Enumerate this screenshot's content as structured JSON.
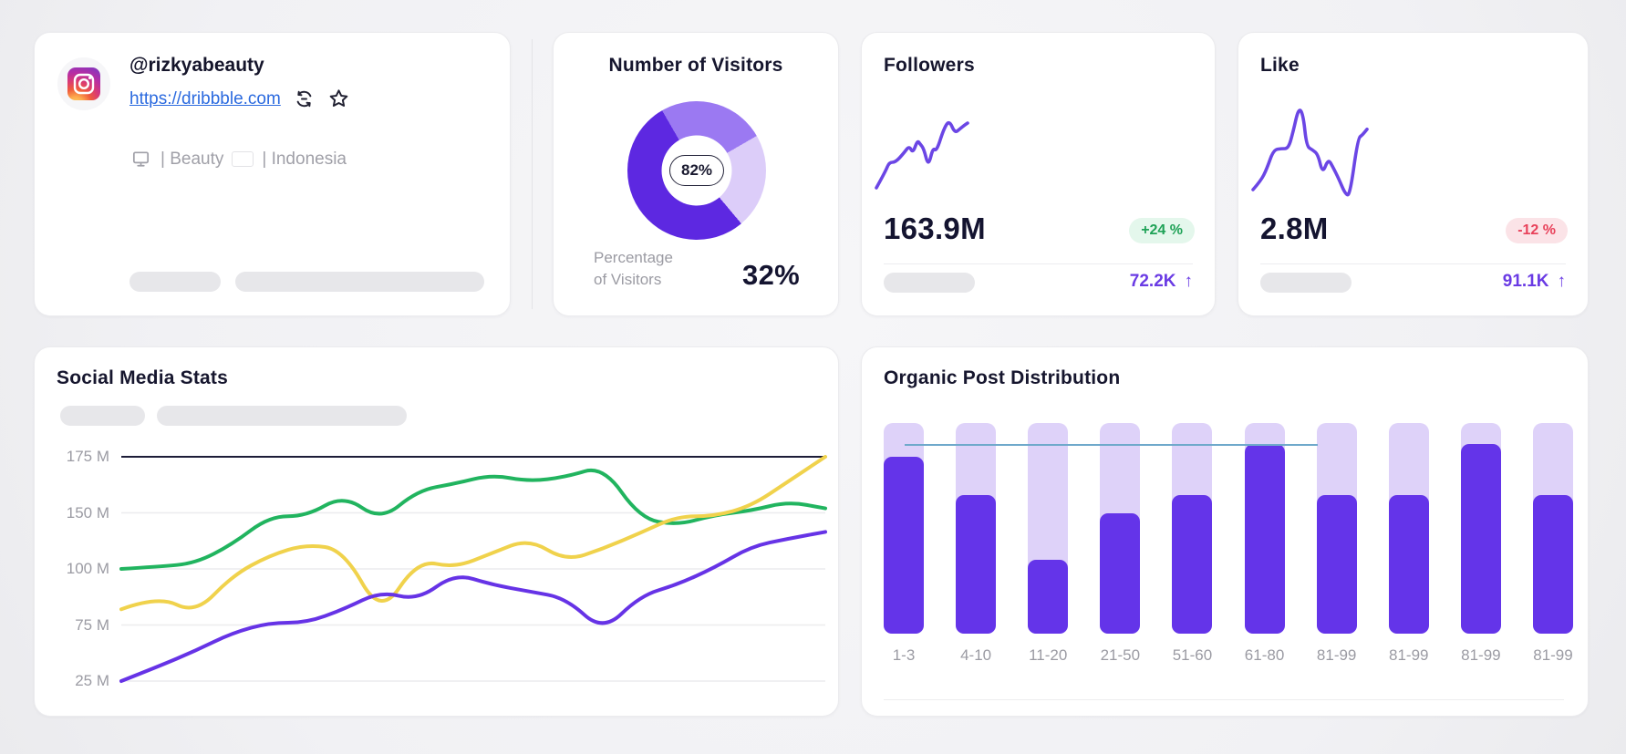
{
  "profile": {
    "username": "@rizkyabeauty",
    "website": "https://dribbble.com",
    "category": "| Beauty",
    "country": "| Indonesia"
  },
  "visitors": {
    "title": "Number of Visitors",
    "caption_line1": "Percentage",
    "caption_line2": "of Visitors",
    "value": "32%",
    "chart_data": {
      "type": "pie",
      "center_label": "82%",
      "rotation_deg": 330,
      "segments": [
        {
          "name": "medium-purple",
          "deg": 90,
          "color": "#9b79f2"
        },
        {
          "name": "light-lavender",
          "deg": 80,
          "color": "#dccdf9"
        },
        {
          "name": "dark-purple",
          "deg": 190,
          "color": "#5d28e1"
        }
      ]
    }
  },
  "followers": {
    "title": "Followers",
    "value": "163.9M",
    "change": "+24 %",
    "secondary": "72.2K",
    "secondary_arrow": "↑",
    "chart_data": {
      "type": "line",
      "color": "#6b46e5",
      "points": [
        [
          0,
          90
        ],
        [
          10,
          72
        ],
        [
          14,
          62
        ],
        [
          21,
          62
        ],
        [
          30,
          52
        ],
        [
          36,
          44
        ],
        [
          40,
          52
        ],
        [
          45,
          38
        ],
        [
          48,
          42
        ],
        [
          52,
          47
        ],
        [
          57,
          67
        ],
        [
          62,
          46
        ],
        [
          66,
          50
        ],
        [
          74,
          25
        ],
        [
          80,
          16
        ],
        [
          86,
          30
        ],
        [
          92,
          25
        ],
        [
          97,
          21
        ],
        [
          100,
          19
        ]
      ]
    }
  },
  "like": {
    "title": "Like",
    "value": "2.8M",
    "change": "-12 %",
    "secondary": "91.1K",
    "secondary_arrow": "↑",
    "chart_data": {
      "type": "line",
      "color": "#6b46e5",
      "points": [
        [
          0,
          88
        ],
        [
          7,
          80
        ],
        [
          12,
          70
        ],
        [
          18,
          53
        ],
        [
          25,
          52
        ],
        [
          31,
          52
        ],
        [
          35,
          38
        ],
        [
          40,
          16
        ],
        [
          44,
          22
        ],
        [
          47,
          50
        ],
        [
          52,
          53
        ],
        [
          57,
          57
        ],
        [
          61,
          74
        ],
        [
          66,
          61
        ],
        [
          70,
          68
        ],
        [
          75,
          78
        ],
        [
          81,
          92
        ],
        [
          85,
          93
        ],
        [
          92,
          43
        ],
        [
          96,
          40
        ],
        [
          100,
          35
        ]
      ]
    }
  },
  "social": {
    "title": "Social Media Stats",
    "chart_data": {
      "type": "line",
      "unit": "M",
      "y_ticks": [
        {
          "label": "175 M",
          "value": 175
        },
        {
          "label": "150 M",
          "value": 150
        },
        {
          "label": "100 M",
          "value": 100
        },
        {
          "label": "75 M",
          "value": 75
        },
        {
          "label": "25 M",
          "value": 25
        }
      ],
      "top_axis_color": "#1d1d38",
      "grid_color": "#ececee",
      "series": [
        {
          "name": "green",
          "color": "#21b45f",
          "values": [
            100,
            102,
            105,
            122,
            147,
            147,
            158,
            143,
            160,
            163,
            167,
            164,
            166,
            171,
            145,
            139,
            148,
            151,
            155,
            152
          ]
        },
        {
          "name": "yellow",
          "color": "#f0d24c",
          "values": [
            82,
            88,
            80,
            97,
            112,
            122,
            117,
            79,
            108,
            101,
            114,
            127,
            107,
            118,
            132,
            147,
            147,
            153,
            164,
            175
          ]
        },
        {
          "name": "purple",
          "color": "#6633e6",
          "values": [
            25,
            38,
            52,
            68,
            76,
            76,
            82,
            90,
            86,
            98,
            93,
            90,
            87,
            69,
            88,
            93,
            101,
            120,
            127,
            133
          ]
        }
      ]
    }
  },
  "organic": {
    "title": "Organic Post Distribution",
    "chart_data": {
      "type": "bar",
      "categories": [
        "1-3",
        "4-10",
        "11-20",
        "21-50",
        "51-60",
        "61-80",
        "81-99",
        "81-99",
        "81-99",
        "81-99"
      ],
      "values_pct": [
        84,
        66,
        35,
        57,
        66,
        90,
        66,
        66,
        90,
        66
      ],
      "bar_color": "#6434e9",
      "track_color": "#ded2f9",
      "reference_line": {
        "level_pct": 90,
        "from_pct": 3,
        "to_pct": 63,
        "color": "#6fa9cb"
      }
    }
  }
}
